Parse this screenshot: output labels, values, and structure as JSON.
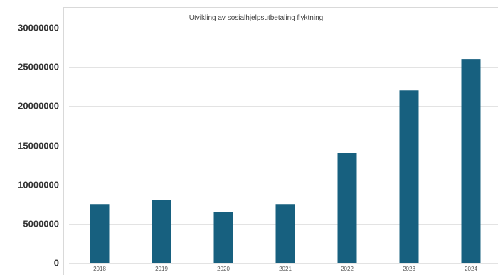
{
  "chart_data": {
    "type": "bar",
    "title": "Utvikling av sosialhjelpsutbetaling flyktning",
    "xlabel": "",
    "ylabel": "",
    "categories": [
      "2018",
      "2019",
      "2020",
      "2021",
      "2022",
      "2023",
      "2024"
    ],
    "values": [
      7500000,
      8000000,
      6500000,
      7500000,
      14000000,
      22000000,
      26000000
    ],
    "ylim": [
      0,
      30000000
    ],
    "yticks": [
      "0",
      "5000000",
      "10000000",
      "15000000",
      "20000000",
      "25000000",
      "30000000"
    ],
    "grid": true,
    "legend": "none",
    "bar_color": "#17607f"
  }
}
